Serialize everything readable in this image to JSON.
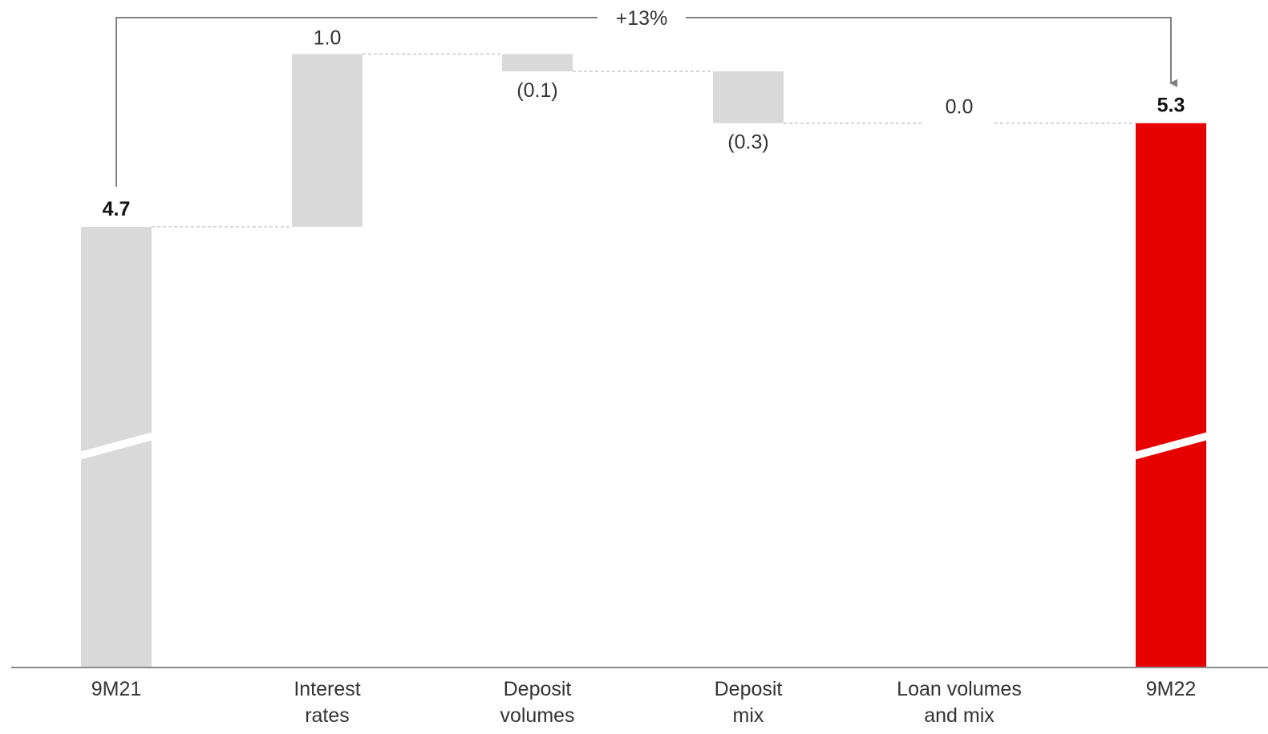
{
  "chart_data": {
    "type": "waterfall",
    "title": "",
    "xlabel": "",
    "ylabel": "",
    "axis_break": true,
    "categories": [
      [
        "9M21"
      ],
      [
        "Interest",
        "rates"
      ],
      [
        "Deposit",
        "volumes"
      ],
      [
        "Deposit",
        "mix"
      ],
      [
        "Loan volumes",
        "and mix"
      ],
      [
        "9M22"
      ]
    ],
    "bars": [
      {
        "kind": "total",
        "value": 4.7,
        "label": "4.7"
      },
      {
        "kind": "delta",
        "value": 1.0,
        "label": "1.0"
      },
      {
        "kind": "delta",
        "value": -0.1,
        "label": "(0.1)"
      },
      {
        "kind": "delta",
        "value": -0.3,
        "label": "(0.3)"
      },
      {
        "kind": "delta",
        "value": 0.0,
        "label": "0.0"
      },
      {
        "kind": "total",
        "value": 5.3,
        "label": "5.3"
      }
    ],
    "change_annotation": {
      "text": "+13%",
      "from": "9M21",
      "to": "9M22"
    },
    "colors": {
      "total_start": "#d9d9d9",
      "delta": "#d9d9d9",
      "total_end": "#e60000",
      "connector": "#c8c8c8",
      "axis": "#8c8c8c",
      "arrow": "#808080"
    }
  }
}
